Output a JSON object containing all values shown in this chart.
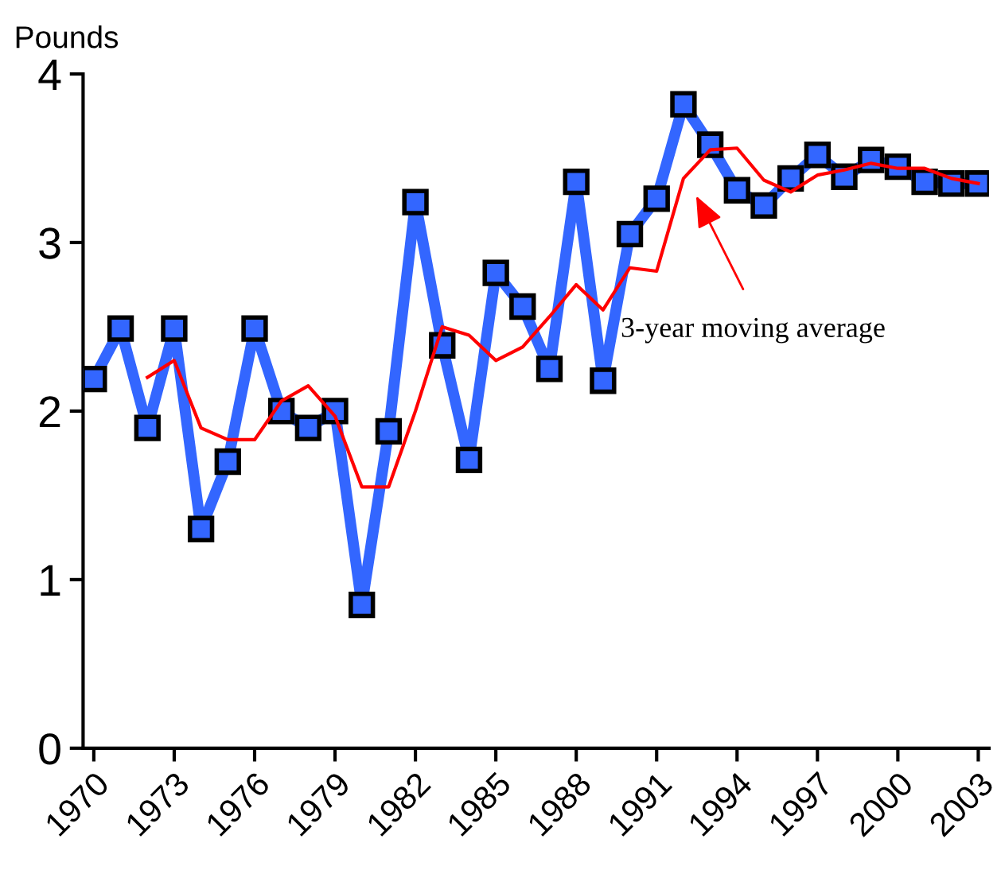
{
  "chart_data": {
    "type": "line",
    "ylabel": "Pounds",
    "categories": [
      "1970",
      null,
      null,
      "1973",
      null,
      null,
      "1976",
      null,
      null,
      "1979",
      null,
      null,
      "1982",
      null,
      null,
      "1985",
      null,
      null,
      "1988",
      null,
      null,
      "1991",
      null,
      null,
      "1994",
      null,
      null,
      "1997",
      null,
      null,
      "2000",
      null,
      null,
      "2003"
    ],
    "series": [
      {
        "color": "#3366ff",
        "marker": "square",
        "values": [
          2.19,
          2.49,
          1.9,
          2.49,
          1.3,
          1.7,
          2.49,
          2.0,
          1.9,
          2.0,
          0.85,
          1.88,
          3.24,
          2.39,
          1.71,
          2.82,
          2.62,
          2.25,
          3.36,
          2.18,
          3.05,
          3.26,
          3.82,
          3.58,
          3.31,
          3.22,
          3.38,
          3.52,
          3.39,
          3.49,
          3.45,
          3.36,
          3.35,
          3.35
        ]
      },
      {
        "color": "#ff0000",
        "marker": "none",
        "values": [
          null,
          null,
          2.2,
          2.3,
          1.9,
          1.83,
          1.83,
          2.06,
          2.15,
          1.97,
          1.55,
          1.55,
          2.0,
          2.5,
          2.45,
          2.3,
          2.38,
          2.56,
          2.75,
          2.6,
          2.85,
          2.83,
          3.38,
          3.55,
          3.56,
          3.37,
          3.3,
          3.4,
          3.43,
          3.47,
          3.44,
          3.44,
          3.38,
          3.35
        ]
      }
    ],
    "ylim": [
      0,
      4
    ],
    "yticks": [
      0,
      1,
      2,
      3,
      4
    ],
    "grid": false,
    "legend": false,
    "annotations": [
      "3-year moving average"
    ]
  }
}
